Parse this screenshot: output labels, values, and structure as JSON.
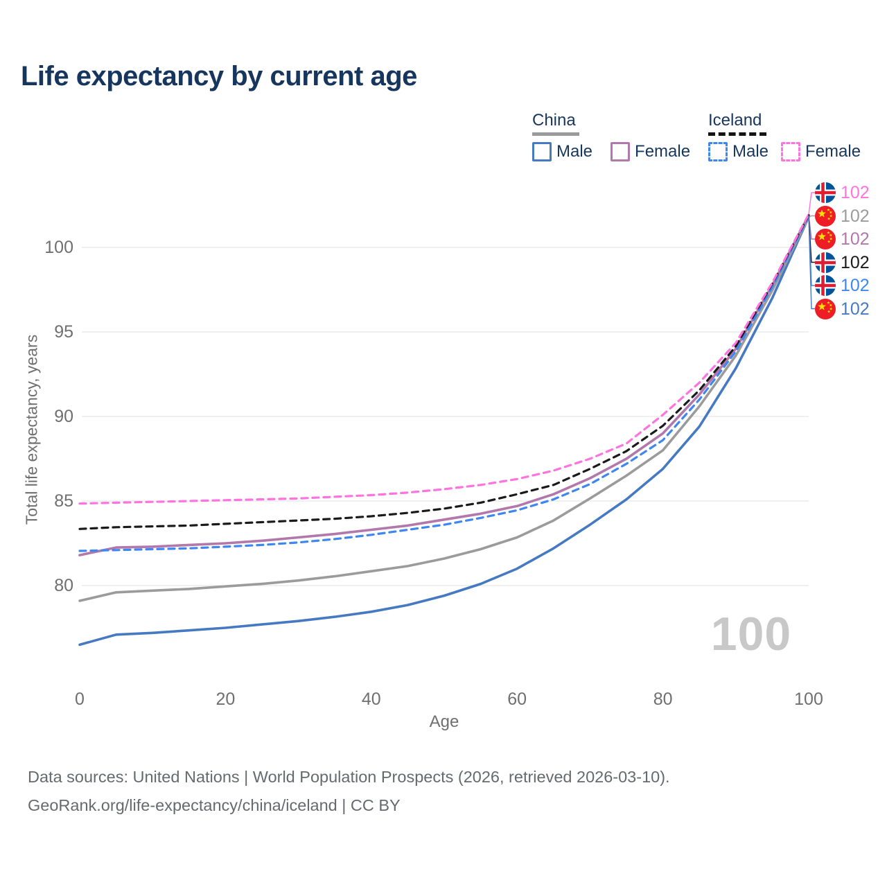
{
  "title": "Life expectancy by current age",
  "legend": {
    "groups": [
      {
        "label": "China",
        "underline_style": "solid",
        "underline_color": "#9a9a9a",
        "items": [
          {
            "label": "Male",
            "color": "#4579c2",
            "dash": false
          },
          {
            "label": "Female",
            "color": "#b277ab",
            "dash": false
          }
        ]
      },
      {
        "label": "Iceland",
        "underline_style": "dashed",
        "underline_color": "#141414",
        "items": [
          {
            "label": "Male",
            "color": "#3e86f0",
            "dash": true
          },
          {
            "label": "Female",
            "color": "#ff73de",
            "dash": true
          }
        ]
      }
    ]
  },
  "chart_data": {
    "type": "line",
    "title": "Life expectancy by current age",
    "xlabel": "Age",
    "ylabel": "Total life expectancy, years",
    "xticks": [
      0,
      20,
      40,
      60,
      80,
      100
    ],
    "yticks": [
      80,
      85,
      90,
      95,
      100
    ],
    "xlim": [
      0,
      100
    ],
    "ylim": [
      76,
      104
    ],
    "grid": "horizontal-only",
    "legend_position": "top-right",
    "watermark": "100",
    "x": [
      0,
      5,
      10,
      15,
      20,
      25,
      30,
      35,
      40,
      45,
      50,
      55,
      60,
      65,
      70,
      75,
      80,
      85,
      90,
      95,
      100
    ],
    "series": [
      {
        "id": "iceland-female",
        "name": "Iceland — Female",
        "country": "iceland",
        "color": "#ff73de",
        "dashed": true,
        "end_label": "102",
        "values": [
          84.85,
          84.9,
          84.95,
          85.0,
          85.05,
          85.1,
          85.15,
          85.25,
          85.35,
          85.5,
          85.7,
          85.95,
          86.3,
          86.8,
          87.5,
          88.4,
          90.1,
          92.0,
          94.35,
          97.9,
          101.95
        ]
      },
      {
        "id": "china-total",
        "name": "China — Total",
        "country": "china",
        "color": "#9b9b9b",
        "dashed": false,
        "end_label": "102",
        "values": [
          79.1,
          79.6,
          79.7,
          79.8,
          79.95,
          80.1,
          80.3,
          80.55,
          80.85,
          81.15,
          81.6,
          82.15,
          82.85,
          83.85,
          85.15,
          86.5,
          88.0,
          90.6,
          93.6,
          97.45,
          101.8
        ]
      },
      {
        "id": "china-female",
        "name": "China — Female",
        "country": "china",
        "color": "#b277ab",
        "dashed": false,
        "end_label": "102",
        "values": [
          81.8,
          82.25,
          82.3,
          82.4,
          82.5,
          82.65,
          82.85,
          83.05,
          83.3,
          83.55,
          83.9,
          84.25,
          84.7,
          85.4,
          86.35,
          87.5,
          89.0,
          91.3,
          94.0,
          97.75,
          101.9
        ]
      },
      {
        "id": "iceland-total",
        "name": "Iceland — Total",
        "country": "iceland",
        "color": "#1a1a1a",
        "dashed": true,
        "end_label": "102",
        "values": [
          83.35,
          83.45,
          83.5,
          83.55,
          83.65,
          83.75,
          83.85,
          83.95,
          84.1,
          84.3,
          84.55,
          84.9,
          85.4,
          85.95,
          86.9,
          87.95,
          89.45,
          91.55,
          94.15,
          97.85,
          101.9
        ]
      },
      {
        "id": "iceland-male",
        "name": "Iceland — Male",
        "country": "iceland",
        "color": "#3e86f0",
        "dashed": true,
        "end_label": "102",
        "values": [
          82.05,
          82.1,
          82.15,
          82.2,
          82.3,
          82.4,
          82.55,
          82.75,
          83.0,
          83.3,
          83.6,
          84.0,
          84.45,
          85.1,
          86.0,
          87.2,
          88.6,
          91.0,
          93.85,
          97.65,
          101.85
        ]
      },
      {
        "id": "china-male",
        "name": "China — Male",
        "country": "china",
        "color": "#4579c2",
        "dashed": false,
        "end_label": "102",
        "values": [
          76.5,
          77.1,
          77.2,
          77.35,
          77.5,
          77.7,
          77.9,
          78.15,
          78.45,
          78.85,
          79.4,
          80.1,
          81.0,
          82.2,
          83.6,
          85.1,
          86.9,
          89.4,
          92.85,
          97.0,
          101.8
        ]
      }
    ]
  },
  "footer": {
    "line1": "Data sources: United Nations | World Population Prospects (2026, retrieved 2026-03-10).",
    "line2": "GeoRank.org/life-expectancy/china/iceland | CC BY"
  }
}
